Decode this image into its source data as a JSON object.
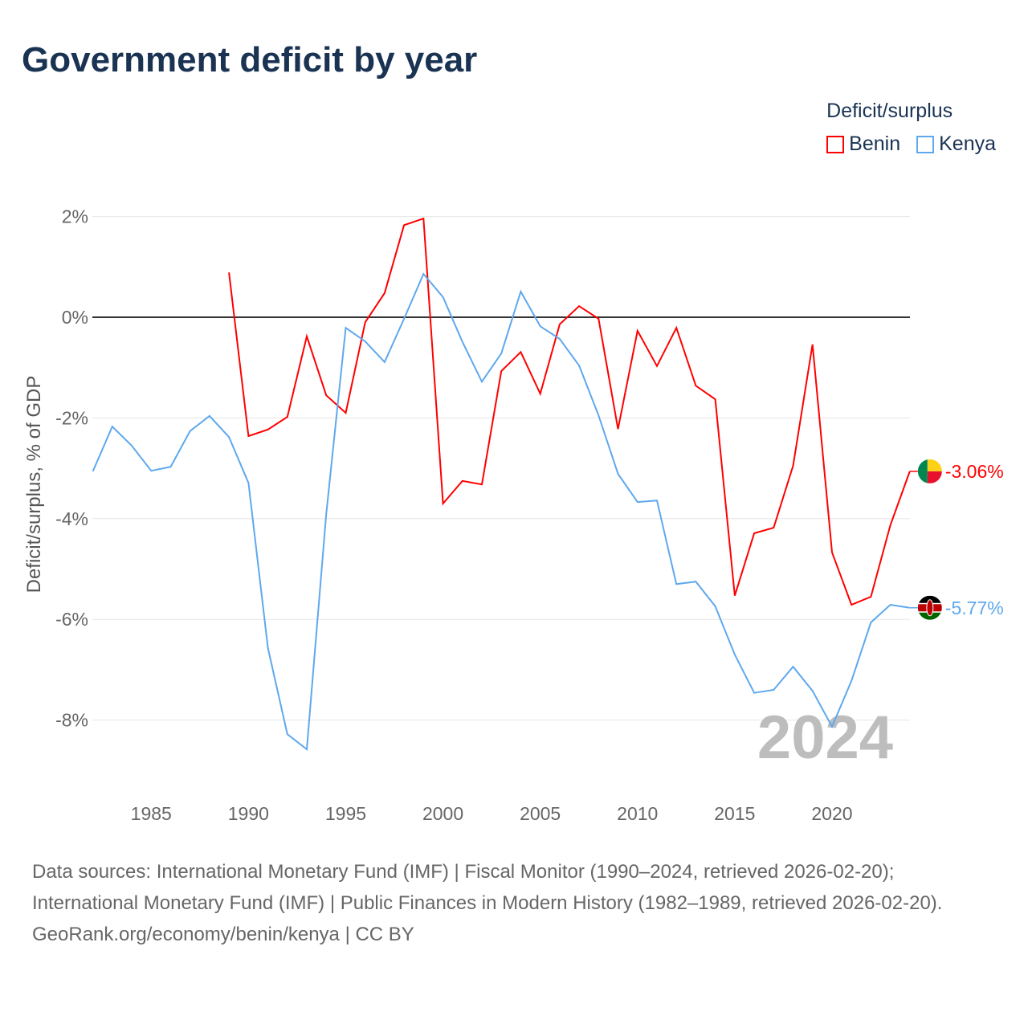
{
  "title": "Government deficit by year",
  "legend": {
    "title": "Deficit/surplus",
    "items": [
      {
        "label": "Benin",
        "color": "#ff0000"
      },
      {
        "label": "Kenya",
        "color": "#5ea8ee"
      }
    ]
  },
  "year_watermark": "2024",
  "sources": {
    "line1": "Data sources: International Monetary Fund (IMF) | Fiscal Monitor (1990–2024, retrieved 2026-02-20); International Monetary Fund (IMF) | Public Finances in Modern History (1982–1989, retrieved 2026-02-20).",
    "line2": "GeoRank.org/economy/benin/kenya | CC BY"
  },
  "chart_data": {
    "type": "line",
    "title": "Government deficit by year",
    "xlabel": "",
    "ylabel": "Deficit/surplus, % of GDP",
    "xlim": [
      1982,
      2024
    ],
    "ylim": [
      -9.2,
      2.4
    ],
    "xticks": [
      1985,
      1990,
      1995,
      2000,
      2005,
      2010,
      2015,
      2020
    ],
    "yticks": [
      2,
      0,
      -2,
      -4,
      -6,
      -8
    ],
    "ytick_labels": [
      "2%",
      "0%",
      "-2%",
      "-4%",
      "-6%",
      "-8%"
    ],
    "grid": true,
    "legend_position": "top-right",
    "series": [
      {
        "name": "Benin",
        "color": "#ff0000",
        "end_label": "-3.06%",
        "x": [
          1989,
          1990,
          1991,
          1992,
          1993,
          1994,
          1995,
          1996,
          1997,
          1998,
          1999,
          2000,
          2001,
          2002,
          2003,
          2004,
          2005,
          2006,
          2007,
          2008,
          2009,
          2010,
          2011,
          2012,
          2013,
          2014,
          2015,
          2016,
          2017,
          2018,
          2019,
          2020,
          2021,
          2022,
          2023,
          2024
        ],
        "values": [
          0.89,
          -2.36,
          -2.23,
          -1.98,
          -0.38,
          -1.55,
          -1.9,
          -0.1,
          0.48,
          1.83,
          1.96,
          -3.7,
          -3.25,
          -3.32,
          -1.07,
          -0.69,
          -1.52,
          -0.14,
          0.22,
          -0.03,
          -2.22,
          -0.27,
          -0.97,
          -0.21,
          -1.36,
          -1.63,
          -5.53,
          -4.29,
          -4.18,
          -2.95,
          -0.54,
          -4.67,
          -5.71,
          -5.55,
          -4.13,
          -3.06
        ]
      },
      {
        "name": "Kenya",
        "color": "#5ea8ee",
        "end_label": "-5.77%",
        "x": [
          1982,
          1983,
          1984,
          1985,
          1986,
          1987,
          1988,
          1989,
          1990,
          1991,
          1992,
          1993,
          1994,
          1995,
          1996,
          1997,
          1998,
          1999,
          2000,
          2001,
          2002,
          2003,
          2004,
          2005,
          2006,
          2007,
          2008,
          2009,
          2010,
          2011,
          2012,
          2013,
          2014,
          2015,
          2016,
          2017,
          2018,
          2019,
          2020,
          2021,
          2022,
          2023,
          2024
        ],
        "values": [
          -3.06,
          -2.17,
          -2.55,
          -3.05,
          -2.97,
          -2.26,
          -1.96,
          -2.38,
          -3.29,
          -6.57,
          -8.28,
          -8.58,
          -3.91,
          -0.21,
          -0.48,
          -0.89,
          -0.03,
          0.86,
          0.4,
          -0.49,
          -1.28,
          -0.72,
          0.51,
          -0.18,
          -0.43,
          -0.96,
          -1.95,
          -3.11,
          -3.67,
          -3.64,
          -5.3,
          -5.25,
          -5.74,
          -6.7,
          -7.46,
          -7.4,
          -6.94,
          -7.42,
          -8.13,
          -7.22,
          -6.06,
          -5.71,
          -5.77
        ]
      }
    ]
  }
}
